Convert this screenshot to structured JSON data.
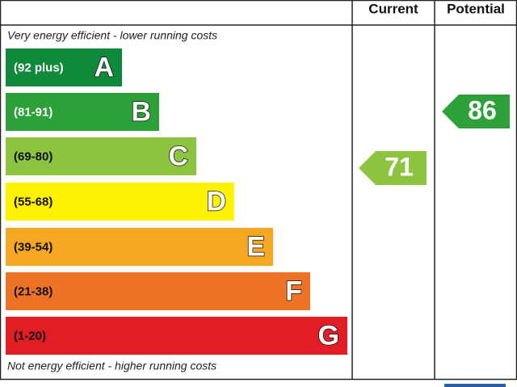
{
  "header": {
    "current": "Current",
    "potential": "Potential"
  },
  "top_note": "Very energy efficient - lower running costs",
  "bottom_note": "Not energy efficient - higher running costs",
  "bands": [
    {
      "range": "(92 plus)",
      "letter": "A",
      "color": "#0f8a3a"
    },
    {
      "range": "(81-91)",
      "letter": "B",
      "color": "#2ea03a"
    },
    {
      "range": "(69-80)",
      "letter": "C",
      "color": "#8cc43f"
    },
    {
      "range": "(55-68)",
      "letter": "D",
      "color": "#fff200"
    },
    {
      "range": "(39-54)",
      "letter": "E",
      "color": "#f5a623"
    },
    {
      "range": "(21-38)",
      "letter": "F",
      "color": "#ee7326"
    },
    {
      "range": "(1-20)",
      "letter": "G",
      "color": "#e21d25"
    }
  ],
  "current_rating": 71,
  "potential_rating": 86
}
